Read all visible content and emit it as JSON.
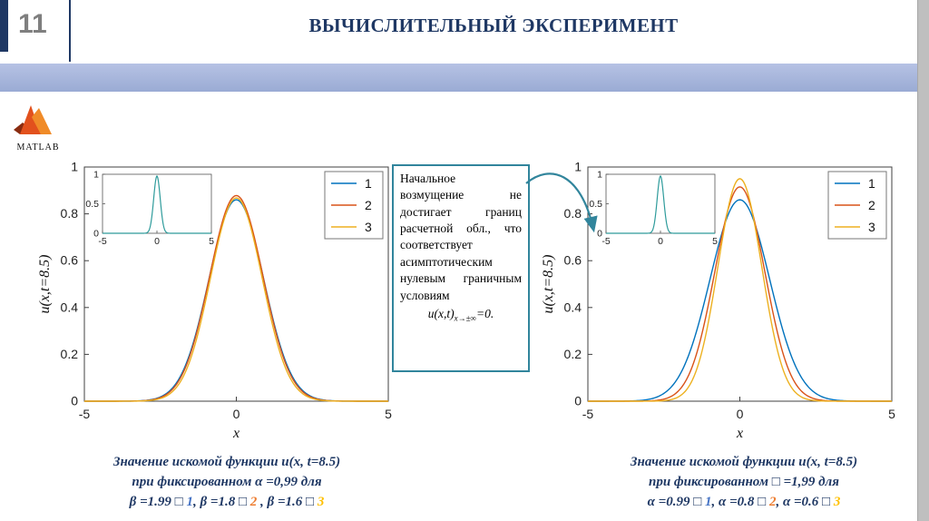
{
  "slide": {
    "number": "11",
    "title": "ВЫЧИСЛИТЕЛЬНЫЙ ЭКСПЕРИМЕНТ"
  },
  "logo": {
    "text": "MATLAB"
  },
  "colors": {
    "navy": "#1F3864",
    "teal": "#31859C",
    "slide_number": "#7F7F7F",
    "band_light": "#B6C2E4",
    "band_dark": "#9AABD4",
    "strip": "#BFBFBF",
    "caption": "#1F3864"
  },
  "note": {
    "body": "Начальное возмущение не достигает границ расчетной обл., что соответствует асимптотическим нулевым граничным условиям",
    "formula": {
      "base": "u(x,t)",
      "sub": "x→±∞",
      "tail": "=0."
    }
  },
  "chart_data": [
    {
      "id": "left",
      "type": "line",
      "title": "",
      "xlabel": "x",
      "ylabel": "u(x,t=8.5)",
      "xlim": [
        -5,
        5
      ],
      "ylim": [
        0,
        1
      ],
      "xticks": [
        "-5",
        "0",
        "5"
      ],
      "yticks": [
        "0",
        "0.2",
        "0.4",
        "0.6",
        "0.8",
        "1"
      ],
      "grid": false,
      "legend": {
        "position": "top-right",
        "entries": [
          {
            "label": "1",
            "color": "#0072BD"
          },
          {
            "label": "2",
            "color": "#D95319"
          },
          {
            "label": "3",
            "color": "#EDB120"
          }
        ]
      },
      "series": [
        {
          "name": "1",
          "color": "#0072BD",
          "shape": "gaussian",
          "center": 0,
          "peak": 0.86,
          "sigma": 0.9
        },
        {
          "name": "2",
          "color": "#D95319",
          "shape": "gaussian",
          "center": 0,
          "peak": 0.878,
          "sigma": 0.88
        },
        {
          "name": "3",
          "color": "#EDB120",
          "shape": "gaussian",
          "center": 0,
          "peak": 0.868,
          "sigma": 0.85
        }
      ],
      "inset": {
        "xlim": [
          -5,
          5
        ],
        "ylim": [
          0,
          1
        ],
        "xticks": [
          "-5",
          "0",
          "5"
        ],
        "yticks": [
          "0",
          "0.5",
          "1"
        ],
        "series": [
          {
            "name": "initial-condition",
            "color": "#2E9B9B",
            "shape": "gaussian",
            "center": 0,
            "peak": 0.97,
            "sigma": 0.3
          }
        ]
      }
    },
    {
      "id": "right",
      "type": "line",
      "title": "",
      "xlabel": "x",
      "ylabel": "u(x,t=8.5)",
      "xlim": [
        -5,
        5
      ],
      "ylim": [
        0,
        1
      ],
      "xticks": [
        "-5",
        "0",
        "5"
      ],
      "yticks": [
        "0",
        "0.2",
        "0.4",
        "0.6",
        "0.8",
        "1"
      ],
      "grid": false,
      "legend": {
        "position": "top-right",
        "entries": [
          {
            "label": "1",
            "color": "#0072BD"
          },
          {
            "label": "2",
            "color": "#D95319"
          },
          {
            "label": "3",
            "color": "#EDB120"
          }
        ]
      },
      "series": [
        {
          "name": "1",
          "color": "#0072BD",
          "shape": "gaussian",
          "center": 0,
          "peak": 0.86,
          "sigma": 0.98
        },
        {
          "name": "2",
          "color": "#D95319",
          "shape": "gaussian",
          "center": 0,
          "peak": 0.915,
          "sigma": 0.82
        },
        {
          "name": "3",
          "color": "#EDB120",
          "shape": "gaussian",
          "center": 0,
          "peak": 0.95,
          "sigma": 0.72
        }
      ],
      "inset": {
        "xlim": [
          -5,
          5
        ],
        "ylim": [
          0,
          1
        ],
        "xticks": [
          "-5",
          "0",
          "5"
        ],
        "yticks": [
          "0",
          "0.5",
          "1"
        ],
        "series": [
          {
            "name": "initial-condition",
            "color": "#2E9B9B",
            "shape": "gaussian",
            "center": 0,
            "peak": 0.97,
            "sigma": 0.3
          }
        ]
      }
    }
  ],
  "captions": [
    {
      "lines": [
        [
          {
            "text": "Значение искомой функции u(x, t=8.5)",
            "color": "#1F3864"
          }
        ],
        [
          {
            "text": "при фиксированном α =0,99 для",
            "color": "#1F3864"
          }
        ],
        [
          {
            "text": "β =1.99 □ ",
            "color": "#1F3864"
          },
          {
            "text": "1",
            "color": "#4472C4"
          },
          {
            "text": ", β =1.8 □ ",
            "color": "#1F3864"
          },
          {
            "text": "2",
            "color": "#ED7D31"
          },
          {
            "text": " , β =1.6 □ ",
            "color": "#1F3864"
          },
          {
            "text": "3",
            "color": "#FFC000"
          }
        ]
      ]
    },
    {
      "lines": [
        [
          {
            "text": "Значение искомой функции u(x, t=8.5)",
            "color": "#1F3864"
          }
        ],
        [
          {
            "text": "при фиксированном □ =1,99 для",
            "color": "#1F3864"
          }
        ],
        [
          {
            "text": "α =0.99 □ ",
            "color": "#1F3864"
          },
          {
            "text": "1",
            "color": "#4472C4"
          },
          {
            "text": ", α =0.8 □ ",
            "color": "#1F3864"
          },
          {
            "text": "2",
            "color": "#ED7D31"
          },
          {
            "text": ", α =0.6 □ ",
            "color": "#1F3864"
          },
          {
            "text": "3",
            "color": "#FFC000"
          }
        ]
      ]
    }
  ]
}
